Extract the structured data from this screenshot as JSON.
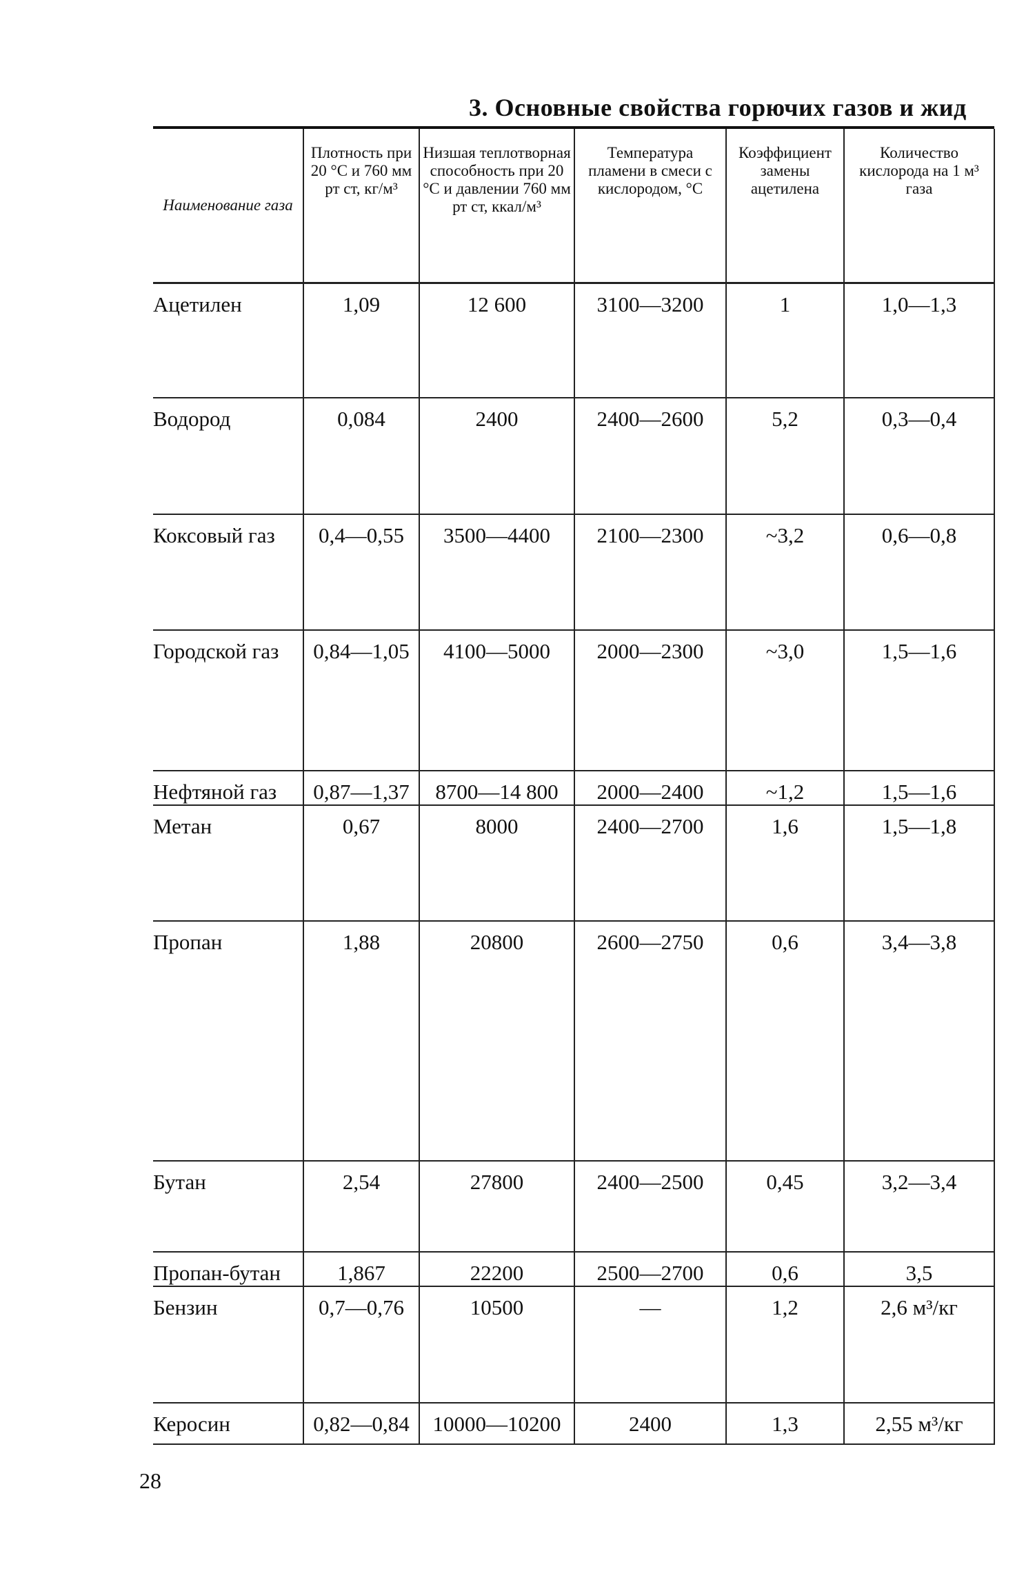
{
  "title": "3. Основные свойства горючих газов и жид",
  "headers": [
    "Наименование газа",
    "Плотность при 20 °C и 760 мм рт ст, кг/м³",
    "Низшая теплотворная способность при 20 °C и давлении 760 мм рт ст, ккал/м³",
    "Температура пламени в смеси с кислородом, °C",
    "Коэффициент замены ацетилена",
    "Количество кислорода на 1 м³ газа"
  ],
  "rows": [
    {
      "name": "Ацетилен",
      "density": "1,09",
      "heat": "12 600",
      "temp": "3100—3200",
      "coef": "1",
      "oxygen": "1,0—1,3"
    },
    {
      "name": "Водород",
      "density": "0,084",
      "heat": "2400",
      "temp": "2400—2600",
      "coef": "5,2",
      "oxygen": "0,3—0,4"
    },
    {
      "name": "Коксовый газ",
      "density": "0,4—0,55",
      "heat": "3500—4400",
      "temp": "2100—2300",
      "coef": "~3,2",
      "oxygen": "0,6—0,8"
    },
    {
      "name": "Городской газ",
      "density": "0,84—1,05",
      "heat": "4100—5000",
      "temp": "2000—2300",
      "coef": "~3,0",
      "oxygen": "1,5—1,6"
    },
    {
      "name": "Нефтяной газ",
      "density": "0,87—1,37",
      "heat": "8700—14 800",
      "temp": "2000—2400",
      "coef": "~1,2",
      "oxygen": "1,5—1,6"
    },
    {
      "name": "Метан",
      "density": "0,67",
      "heat": "8000",
      "temp": "2400—2700",
      "coef": "1,6",
      "oxygen": "1,5—1,8"
    },
    {
      "name": "Пропан",
      "density": "1,88",
      "heat": "20800",
      "temp": "2600—2750",
      "coef": "0,6",
      "oxygen": "3,4—3,8"
    },
    {
      "name": "Бутан",
      "density": "2,54",
      "heat": "27800",
      "temp": "2400—2500",
      "coef": "0,45",
      "oxygen": "3,2—3,4"
    },
    {
      "name": "Пропан-бутан",
      "density": "1,867",
      "heat": "22200",
      "temp": "2500—2700",
      "coef": "0,6",
      "oxygen": "3,5"
    },
    {
      "name": "Бензин",
      "density": "0,7—0,76",
      "heat": "10500",
      "temp": "—",
      "coef": "1,2",
      "oxygen": "2,6 м³/кг"
    },
    {
      "name": "Керосин",
      "density": "0,82—0,84",
      "heat": "10000—10200",
      "temp": "2400",
      "coef": "1,3",
      "oxygen": "2,55 м³/кг"
    }
  ],
  "page_number": "28"
}
